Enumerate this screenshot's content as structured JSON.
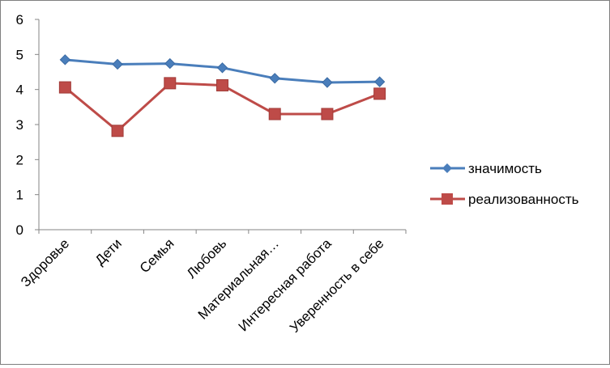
{
  "chart_data": {
    "type": "line",
    "title": "",
    "xlabel": "",
    "ylabel": "",
    "categories": [
      "Здоровье",
      "Дети",
      "Семья",
      "Любовь",
      "Материальная…",
      "Интересная работа",
      "Уверенность в себе"
    ],
    "ylim": [
      0,
      6
    ],
    "yticks": [
      0,
      1,
      2,
      3,
      4,
      5,
      6
    ],
    "grid": false,
    "legend_position": "right",
    "series": [
      {
        "name": "значимость",
        "color": "#4a7ebb",
        "marker": "diamond",
        "values": [
          4.85,
          4.72,
          4.74,
          4.62,
          4.32,
          4.2,
          4.22
        ]
      },
      {
        "name": "реализованность",
        "color": "#be4b48",
        "marker": "square",
        "values": [
          4.06,
          2.82,
          4.18,
          4.12,
          3.3,
          3.3,
          3.88
        ]
      }
    ]
  }
}
